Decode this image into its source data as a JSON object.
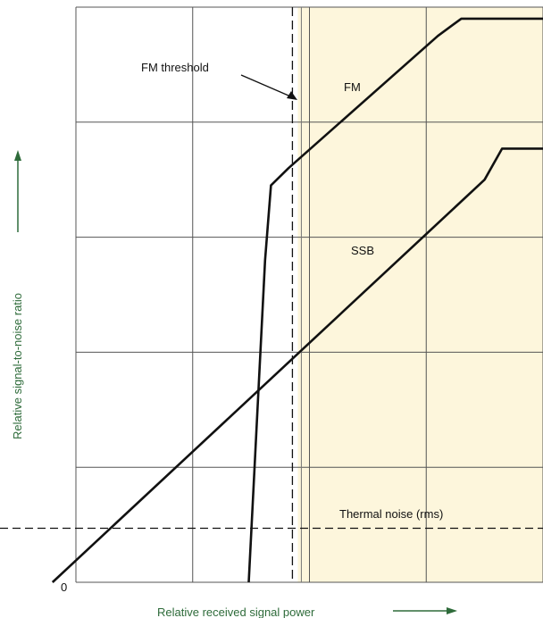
{
  "chart_data": {
    "type": "line",
    "xlabel": "Relative received signal power",
    "ylabel": "Relative signal-to-noise ratio",
    "origin_label": "0",
    "xlim": [
      0,
      4
    ],
    "ylim": [
      0,
      5
    ],
    "grid": true,
    "x_ticks": [
      0,
      1,
      2,
      3,
      4
    ],
    "y_ticks": [
      0,
      1,
      2,
      3,
      4,
      5
    ],
    "series": [
      {
        "name": "FM",
        "values": [
          {
            "x": 1.48,
            "y": 0.0
          },
          {
            "x": 1.62,
            "y": 2.8
          },
          {
            "x": 1.67,
            "y": 3.45
          },
          {
            "x": 1.82,
            "y": 3.6
          },
          {
            "x": 3.1,
            "y": 4.75
          },
          {
            "x": 3.3,
            "y": 4.9
          },
          {
            "x": 4.0,
            "y": 4.9
          }
        ]
      },
      {
        "name": "SSB",
        "values": [
          {
            "x": -0.2,
            "y": 0.0
          },
          {
            "x": 3.5,
            "y": 3.5
          },
          {
            "x": 3.65,
            "y": 3.77
          },
          {
            "x": 4.0,
            "y": 3.77
          }
        ]
      }
    ],
    "reference_lines": [
      {
        "orientation": "vertical",
        "x": 1.9,
        "label": "FM threshold"
      },
      {
        "orientation": "horizontal",
        "y": 0.47,
        "label": "Thermal noise (rms)"
      }
    ],
    "shaded_region_x": [
      1.9,
      4.0
    ],
    "annotations": {
      "fm_threshold": "FM threshold",
      "thermal_noise": "Thermal noise (rms)",
      "fm_label": "FM",
      "ssb_label": "SSB"
    }
  },
  "colors": {
    "axis_text": "#2e6b3a",
    "curve": "#111111",
    "grid": "#555555",
    "shade": "#fdf6dc"
  }
}
